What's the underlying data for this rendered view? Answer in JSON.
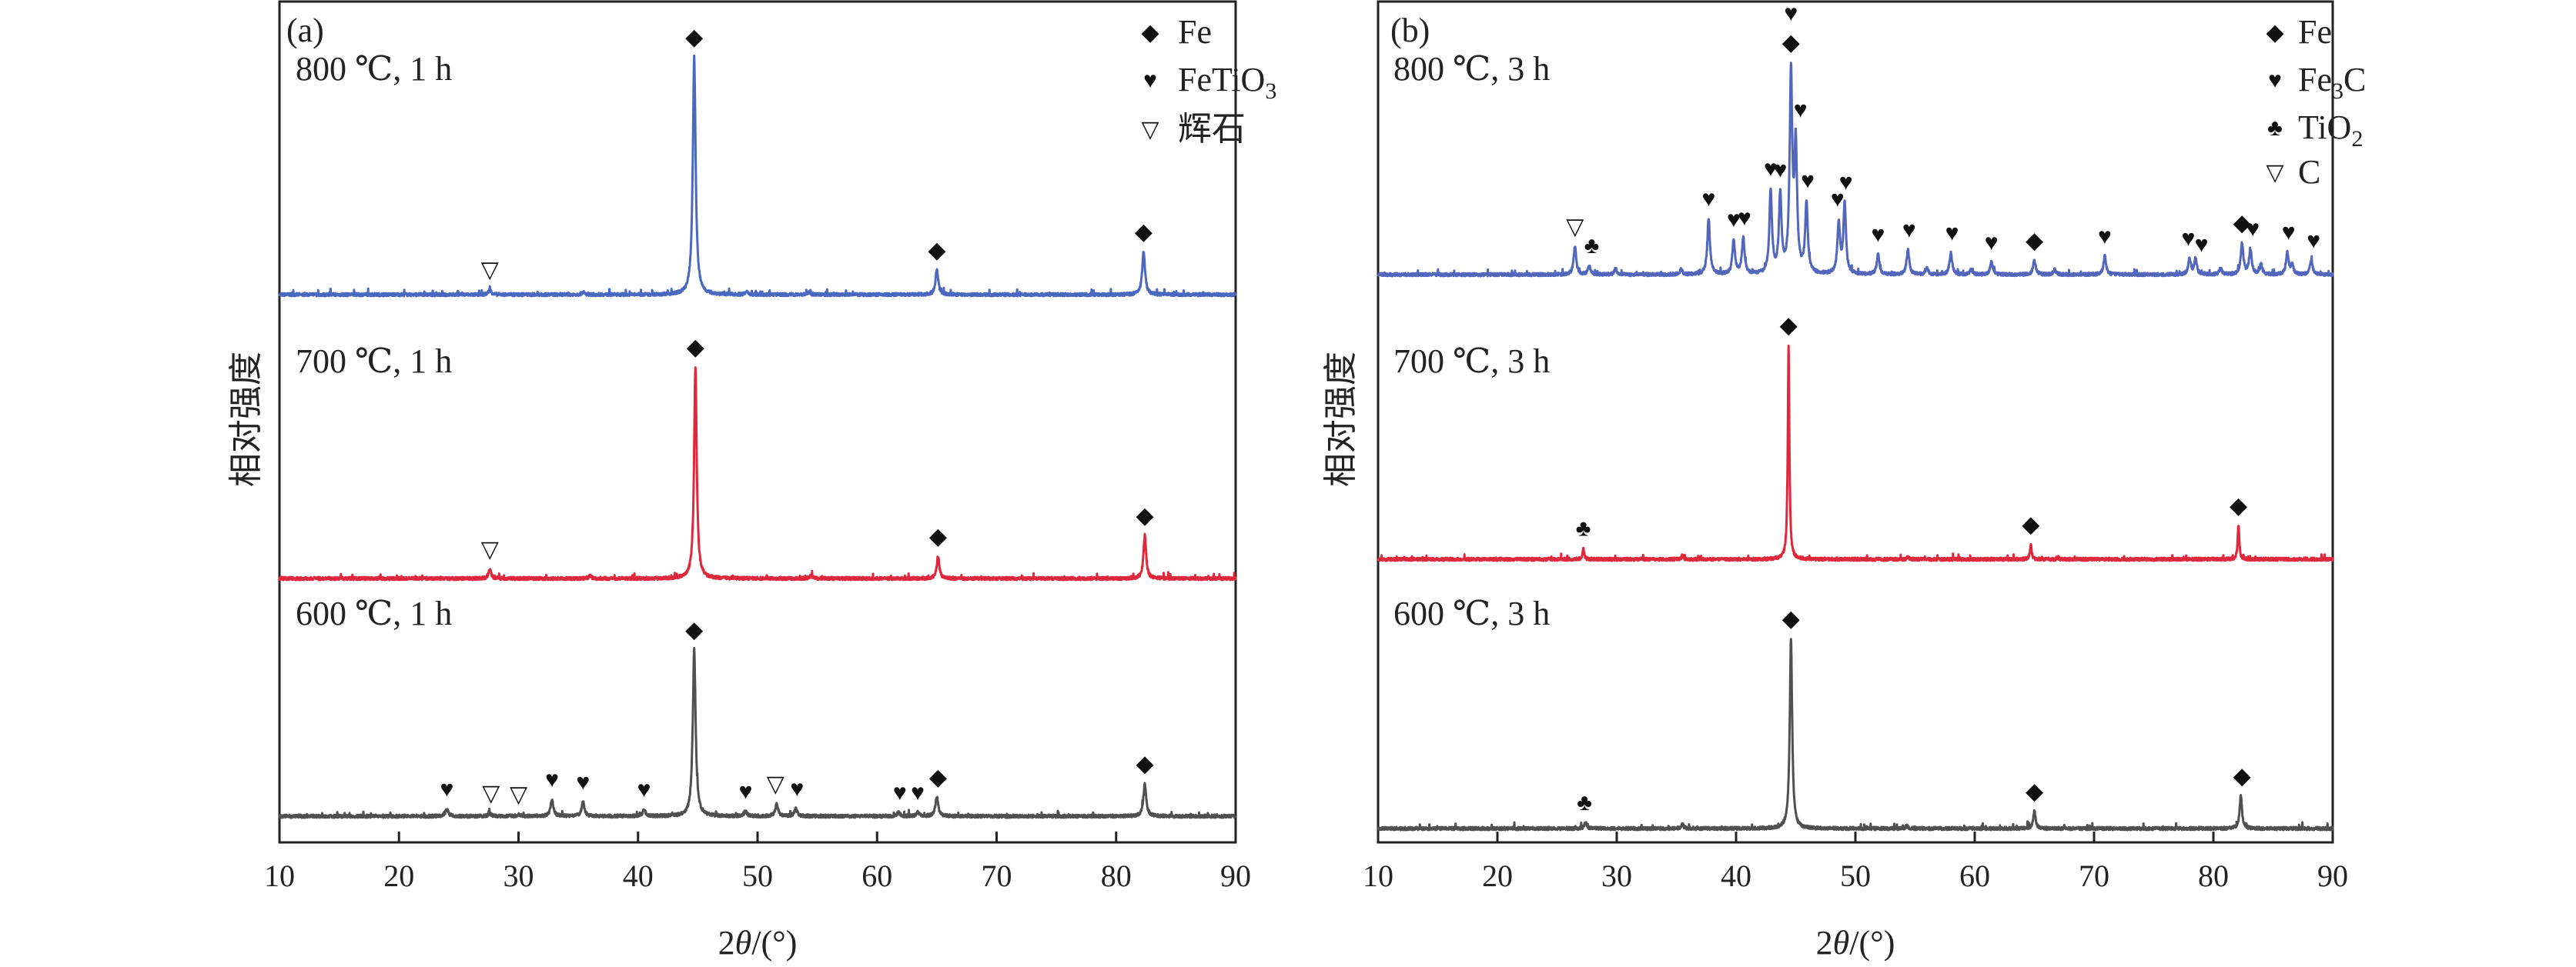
{
  "chart_data": [
    {
      "type": "line",
      "panel_label": "(a)",
      "xlabel": {
        "prefix": "2",
        "italic": "θ",
        "suffix": "/(°)"
      },
      "ylabel": "相对强度",
      "xlim": [
        10,
        90
      ],
      "xticks": [
        "10",
        "20",
        "30",
        "40",
        "50",
        "60",
        "70",
        "80",
        "90"
      ],
      "grid": false,
      "legend_position": "top-right",
      "legend": [
        {
          "symbol": "diamond",
          "label": "Fe",
          "sub": ""
        },
        {
          "symbol": "heart",
          "label": "FeTiO",
          "sub": "3"
        },
        {
          "symbol": "triangle",
          "label": "辉石",
          "sub": ""
        }
      ],
      "series": [
        {
          "name": "800 ℃, 1 h",
          "color": "#4a68c0",
          "peaks": [
            [
              27.6,
              8
            ],
            [
              35.4,
              4
            ],
            [
              44.7,
              385
            ],
            [
              49.1,
              4
            ],
            [
              54.3,
              4
            ],
            [
              65.0,
              40
            ],
            [
              82.3,
              70
            ]
          ],
          "markers": [
            [
              27.6,
              "triangle"
            ],
            [
              44.7,
              "diamond"
            ],
            [
              65.0,
              "diamond"
            ],
            [
              82.3,
              "diamond"
            ]
          ]
        },
        {
          "name": "700 ℃, 1 h",
          "color": "#e0283c",
          "peaks": [
            [
              27.6,
              15
            ],
            [
              36.0,
              4
            ],
            [
              44.8,
              343
            ],
            [
              54.5,
              5
            ],
            [
              65.1,
              36
            ],
            [
              82.4,
              70
            ]
          ],
          "markers": [
            [
              27.6,
              "triangle"
            ],
            [
              44.8,
              "diamond"
            ],
            [
              65.1,
              "diamond"
            ],
            [
              82.4,
              "diamond"
            ]
          ]
        },
        {
          "name": "600 ℃, 1 h",
          "color": "#505050",
          "peaks": [
            [
              24.0,
              12
            ],
            [
              27.6,
              5
            ],
            [
              30.0,
              3
            ],
            [
              32.8,
              27
            ],
            [
              35.4,
              23
            ],
            [
              40.5,
              11
            ],
            [
              44.7,
              270
            ],
            [
              49.0,
              8
            ],
            [
              51.6,
              20
            ],
            [
              53.2,
              12
            ],
            [
              61.8,
              6
            ],
            [
              63.4,
              6
            ],
            [
              65.0,
              31
            ],
            [
              82.4,
              53
            ]
          ],
          "markers": [
            [
              24.0,
              "heart"
            ],
            [
              27.7,
              "triangle"
            ],
            [
              30.0,
              "triangle"
            ],
            [
              32.8,
              "heart"
            ],
            [
              35.4,
              "heart"
            ],
            [
              40.5,
              "heart"
            ],
            [
              44.7,
              "diamond"
            ],
            [
              49.0,
              "heart"
            ],
            [
              51.5,
              "triangle"
            ],
            [
              53.3,
              "heart"
            ],
            [
              61.9,
              "heart"
            ],
            [
              63.4,
              "heart"
            ],
            [
              65.1,
              "diamond"
            ],
            [
              82.4,
              "diamond"
            ]
          ]
        }
      ]
    },
    {
      "type": "line",
      "panel_label": "(b)",
      "xlabel": {
        "prefix": "2",
        "italic": "θ",
        "suffix": "/(°)"
      },
      "ylabel": "相对强度",
      "xlim": [
        10,
        90
      ],
      "xticks": [
        "10",
        "20",
        "30",
        "40",
        "50",
        "60",
        "70",
        "80",
        "90"
      ],
      "grid": false,
      "legend_position": "top-right",
      "legend": [
        {
          "symbol": "diamond",
          "label": "Fe",
          "sub": ""
        },
        {
          "symbol": "heart",
          "label": "Fe",
          "sub": "3",
          "after": "C"
        },
        {
          "symbol": "club",
          "label": "TiO",
          "sub": "2"
        },
        {
          "symbol": "triangle",
          "label": "C",
          "sub": ""
        }
      ],
      "series": [
        {
          "name": "800 ℃, 3 h",
          "color": "#5266bb",
          "peaks": [
            [
              26.5,
              45
            ],
            [
              27.7,
              14
            ],
            [
              29.9,
              10
            ],
            [
              35.4,
              8
            ],
            [
              37.7,
              90
            ],
            [
              39.8,
              55
            ],
            [
              40.6,
              57
            ],
            [
              42.9,
              133
            ],
            [
              43.7,
              125
            ],
            [
              44.6,
              320
            ],
            [
              45.0,
              200
            ],
            [
              45.9,
              112
            ],
            [
              48.6,
              82
            ],
            [
              49.1,
              112
            ],
            [
              51.9,
              32
            ],
            [
              54.4,
              40
            ],
            [
              56.0,
              10
            ],
            [
              58.0,
              35
            ],
            [
              59.7,
              8
            ],
            [
              61.4,
              20
            ],
            [
              65.0,
              23
            ],
            [
              66.7,
              8
            ],
            [
              70.9,
              30
            ],
            [
              78.0,
              25
            ],
            [
              78.5,
              25
            ],
            [
              80.6,
              10
            ],
            [
              82.4,
              50
            ],
            [
              83.1,
              40
            ],
            [
              84.0,
              15
            ],
            [
              86.2,
              35
            ],
            [
              86.6,
              15
            ],
            [
              88.2,
              23
            ]
          ],
          "markers": [
            [
              26.5,
              "triangle"
            ],
            [
              27.9,
              "club"
            ],
            [
              37.7,
              "heart"
            ],
            [
              39.8,
              "heart"
            ],
            [
              40.7,
              "heart"
            ],
            [
              42.9,
              "heart"
            ],
            [
              43.7,
              "heart"
            ],
            [
              44.6,
              "diamond"
            ],
            [
              44.6,
              "heart"
            ],
            [
              45.4,
              "heart"
            ],
            [
              46.0,
              "heart"
            ],
            [
              48.5,
              "heart"
            ],
            [
              49.2,
              "heart"
            ],
            [
              51.9,
              "heart"
            ],
            [
              54.5,
              "heart"
            ],
            [
              58.1,
              "heart"
            ],
            [
              61.4,
              "heart"
            ],
            [
              65.0,
              "diamond"
            ],
            [
              70.9,
              "heart"
            ],
            [
              77.9,
              "heart"
            ],
            [
              79.0,
              "heart"
            ],
            [
              82.4,
              "diamond"
            ],
            [
              83.3,
              "heart"
            ],
            [
              86.3,
              "heart"
            ],
            [
              88.4,
              "heart"
            ]
          ]
        },
        {
          "name": "700 ℃, 3 h",
          "color": "#e0283c",
          "peaks": [
            [
              27.2,
              18
            ],
            [
              35.5,
              6
            ],
            [
              44.4,
              347
            ],
            [
              54.4,
              4
            ],
            [
              64.7,
              24
            ],
            [
              82.1,
              55
            ]
          ],
          "markers": [
            [
              27.2,
              "club"
            ],
            [
              44.4,
              "diamond"
            ],
            [
              64.7,
              "diamond"
            ],
            [
              82.1,
              "diamond"
            ]
          ]
        },
        {
          "name": "600 ℃, 3 h",
          "color": "#505050",
          "peaks": [
            [
              27.4,
              10
            ],
            [
              35.5,
              7
            ],
            [
              44.6,
              308
            ],
            [
              54.3,
              4
            ],
            [
              65.0,
              28
            ],
            [
              82.3,
              53
            ]
          ],
          "markers": [
            [
              27.3,
              "club"
            ],
            [
              44.6,
              "diamond"
            ],
            [
              65.0,
              "diamond"
            ],
            [
              82.4,
              "diamond"
            ]
          ]
        }
      ]
    }
  ]
}
